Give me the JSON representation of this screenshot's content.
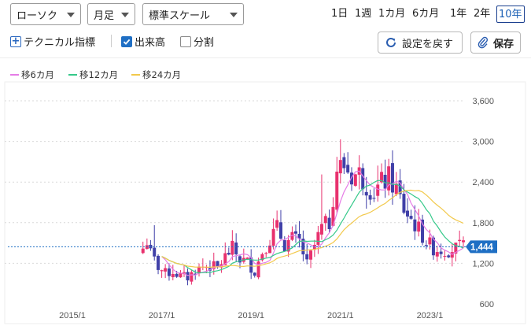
{
  "toolbar": {
    "chart_type": "ローソク",
    "interval": "月足",
    "scale": "標準スケール",
    "periods": [
      "1日",
      "1週",
      "1カ月",
      "6カ月",
      "1年",
      "2年",
      "10年"
    ],
    "active_period": "10年",
    "technical_label": "テクニカル指標",
    "volume_label": "出来高",
    "volume_checked": true,
    "split_label": "分割",
    "split_checked": false,
    "reset_label": "設定を戻す",
    "save_label": "保存"
  },
  "legend": [
    {
      "label": "移6カ月",
      "color": "#e57ce6"
    },
    {
      "label": "移12カ月",
      "color": "#35c98a"
    },
    {
      "label": "移24カ月",
      "color": "#f2c94c"
    }
  ],
  "colors": {
    "up": "#e8316e",
    "down": "#4040a8",
    "price_tag": "#1f6fc4"
  },
  "chart_data": {
    "type": "candlestick",
    "y_ticks": [
      "3,600",
      "3,000",
      "2,400",
      "1,800",
      "1,200",
      "600"
    ],
    "x_ticks": [
      "2015/1",
      "2017/1",
      "2019/1",
      "2021/1",
      "2023/1"
    ],
    "ylim": [
      600,
      3600
    ],
    "current_price": 1444,
    "current_price_label": "1,444",
    "ohlc_segments": [
      [
        2016.58,
        1420
      ],
      [
        2016.67,
        1530
      ],
      [
        2016.75,
        1340
      ],
      [
        2016.92,
        1150
      ],
      [
        2017.08,
        1050
      ],
      [
        2017.25,
        1080
      ],
      [
        2017.42,
        1010
      ],
      [
        2017.58,
        990
      ],
      [
        2017.75,
        1100
      ],
      [
        2017.92,
        1150
      ],
      [
        2018.08,
        1160
      ],
      [
        2018.25,
        1130
      ],
      [
        2018.42,
        1300
      ],
      [
        2018.58,
        1420
      ],
      [
        2018.75,
        1260
      ],
      [
        2018.92,
        1220
      ],
      [
        2019.08,
        1080
      ],
      [
        2019.25,
        1380
      ],
      [
        2019.42,
        1560
      ],
      [
        2019.58,
        1720
      ],
      [
        2019.75,
        1480
      ],
      [
        2019.92,
        1560
      ],
      [
        2020.08,
        1520
      ],
      [
        2020.25,
        1180
      ],
      [
        2020.42,
        1460
      ],
      [
        2020.58,
        1720
      ],
      [
        2020.75,
        1800
      ],
      [
        2020.92,
        2600
      ],
      [
        2021.08,
        2650
      ],
      [
        2021.25,
        2500
      ],
      [
        2021.42,
        2520
      ],
      [
        2021.58,
        2380
      ],
      [
        2021.75,
        2250
      ],
      [
        2021.92,
        2380
      ],
      [
        2022.08,
        2450
      ],
      [
        2022.25,
        2300
      ],
      [
        2022.42,
        2000
      ],
      [
        2022.58,
        1850
      ],
      [
        2022.75,
        1700
      ],
      [
        2022.92,
        1520
      ],
      [
        2023.08,
        1420
      ],
      [
        2023.25,
        1400
      ],
      [
        2023.42,
        1400
      ],
      [
        2023.58,
        1420
      ],
      [
        2023.75,
        1444
      ]
    ]
  }
}
